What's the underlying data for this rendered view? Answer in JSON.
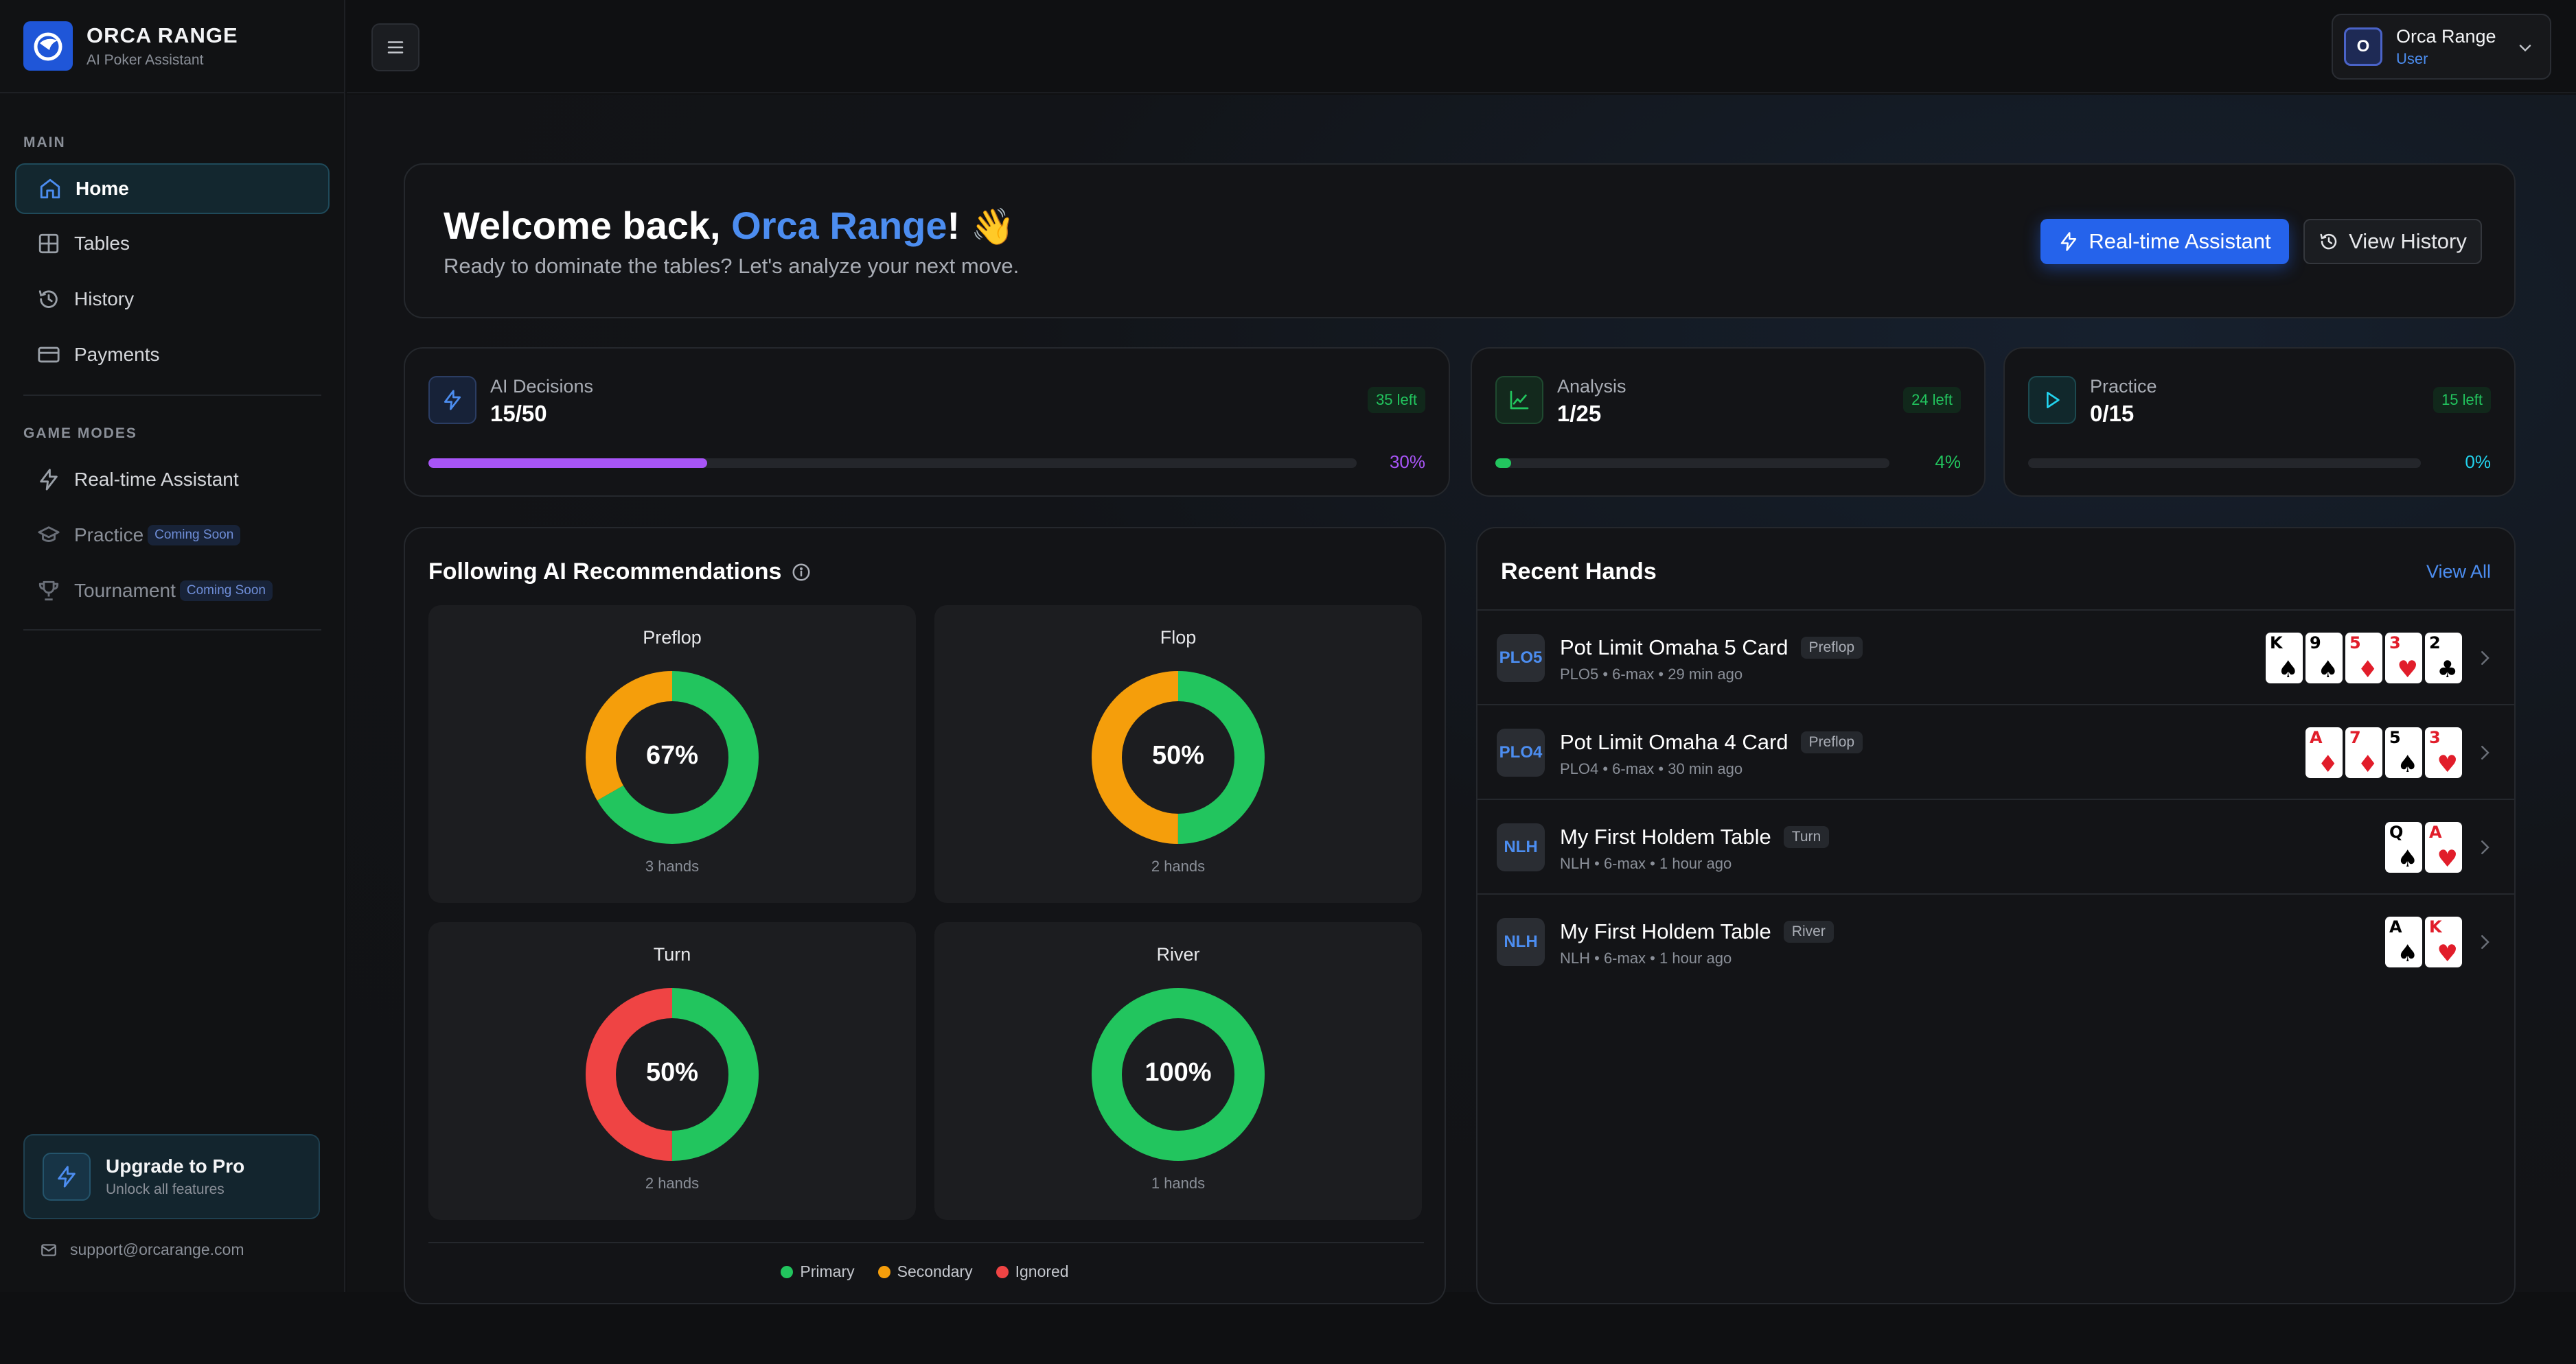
{
  "brand": {
    "name": "ORCA RANGE",
    "subtitle": "AI Poker Assistant"
  },
  "sidebar": {
    "main_label": "MAIN",
    "main_items": [
      {
        "label": "Home",
        "icon": "home-icon",
        "active": true
      },
      {
        "label": "Tables",
        "icon": "grid-icon"
      },
      {
        "label": "History",
        "icon": "history-icon"
      },
      {
        "label": "Payments",
        "icon": "credit-card-icon"
      }
    ],
    "modes_label": "GAME MODES",
    "mode_items": [
      {
        "label": "Real-time Assistant",
        "icon": "bolt-icon"
      },
      {
        "label": "Practice",
        "icon": "graduation-cap-icon",
        "badge": "Coming Soon"
      },
      {
        "label": "Tournament",
        "icon": "trophy-icon",
        "badge": "Coming Soon"
      }
    ],
    "upgrade": {
      "title": "Upgrade to Pro",
      "subtitle": "Unlock all features"
    },
    "support_email": "support@orcarange.com"
  },
  "topbar": {
    "user": {
      "initial": "O",
      "name": "Orca Range",
      "role": "User"
    }
  },
  "welcome": {
    "greeting": "Welcome back, ",
    "name": "Orca Range",
    "punct": "!",
    "emoji": "👋",
    "subtitle": "Ready to dominate the tables? Let's analyze your next move.",
    "primary_button": "Real-time Assistant",
    "secondary_button": "View History"
  },
  "stats": [
    {
      "label": "AI Decisions",
      "value": "15/50",
      "badge": "35 left",
      "percent": "30%",
      "fraction": 0.3,
      "color": "#a855f7",
      "icon": "bolt-icon"
    },
    {
      "label": "Analysis",
      "value": "1/25",
      "badge": "24 left",
      "percent": "4%",
      "fraction": 0.04,
      "color": "#22c55e",
      "icon": "chart-line-icon"
    },
    {
      "label": "Practice",
      "value": "0/15",
      "badge": "15 left",
      "percent": "0%",
      "fraction": 0.0,
      "color": "#22d3ee",
      "icon": "play-icon"
    }
  ],
  "recommendations": {
    "title": "Following AI Recommendations",
    "panels": [
      {
        "name": "Preflop",
        "percent": "67%",
        "hands": "3 hands",
        "primary": 2,
        "secondary": 1,
        "ignored": 0
      },
      {
        "name": "Flop",
        "percent": "50%",
        "hands": "2 hands",
        "primary": 1,
        "secondary": 1,
        "ignored": 0
      },
      {
        "name": "Turn",
        "percent": "50%",
        "hands": "2 hands",
        "primary": 1,
        "secondary": 0,
        "ignored": 1
      },
      {
        "name": "River",
        "percent": "100%",
        "hands": "1 hands",
        "primary": 1,
        "secondary": 0,
        "ignored": 0
      }
    ],
    "legend": [
      {
        "label": "Primary",
        "color": "#22c55e"
      },
      {
        "label": "Secondary",
        "color": "#f59e0b"
      },
      {
        "label": "Ignored",
        "color": "#ef4444"
      }
    ]
  },
  "recent_hands": {
    "title": "Recent Hands",
    "view_all": "View All",
    "rows": [
      {
        "badge": "PLO5",
        "name": "Pot Limit Omaha 5 Card",
        "street": "Preflop",
        "meta": "PLO5  •  6-max  •  29 min ago",
        "cards": [
          {
            "rank": "K",
            "suit": "♠"
          },
          {
            "rank": "9",
            "suit": "♠"
          },
          {
            "rank": "5",
            "suit": "♦"
          },
          {
            "rank": "3",
            "suit": "♥"
          },
          {
            "rank": "2",
            "suit": "♣"
          }
        ]
      },
      {
        "badge": "PLO4",
        "name": "Pot Limit Omaha 4 Card",
        "street": "Preflop",
        "meta": "PLO4  •  6-max  •  30 min ago",
        "cards": [
          {
            "rank": "A",
            "suit": "♦"
          },
          {
            "rank": "7",
            "suit": "♦"
          },
          {
            "rank": "5",
            "suit": "♠"
          },
          {
            "rank": "3",
            "suit": "♥"
          }
        ]
      },
      {
        "badge": "NLH",
        "name": "My First Holdem Table",
        "street": "Turn",
        "meta": "NLH  •  6-max  •  1 hour ago",
        "cards": [
          {
            "rank": "Q",
            "suit": "♠"
          },
          {
            "rank": "A",
            "suit": "♥"
          }
        ]
      },
      {
        "badge": "NLH",
        "name": "My First Holdem Table",
        "street": "River",
        "meta": "NLH  •  6-max  •  1 hour ago",
        "cards": [
          {
            "rank": "A",
            "suit": "♠"
          },
          {
            "rank": "K",
            "suit": "♥"
          }
        ]
      }
    ]
  }
}
